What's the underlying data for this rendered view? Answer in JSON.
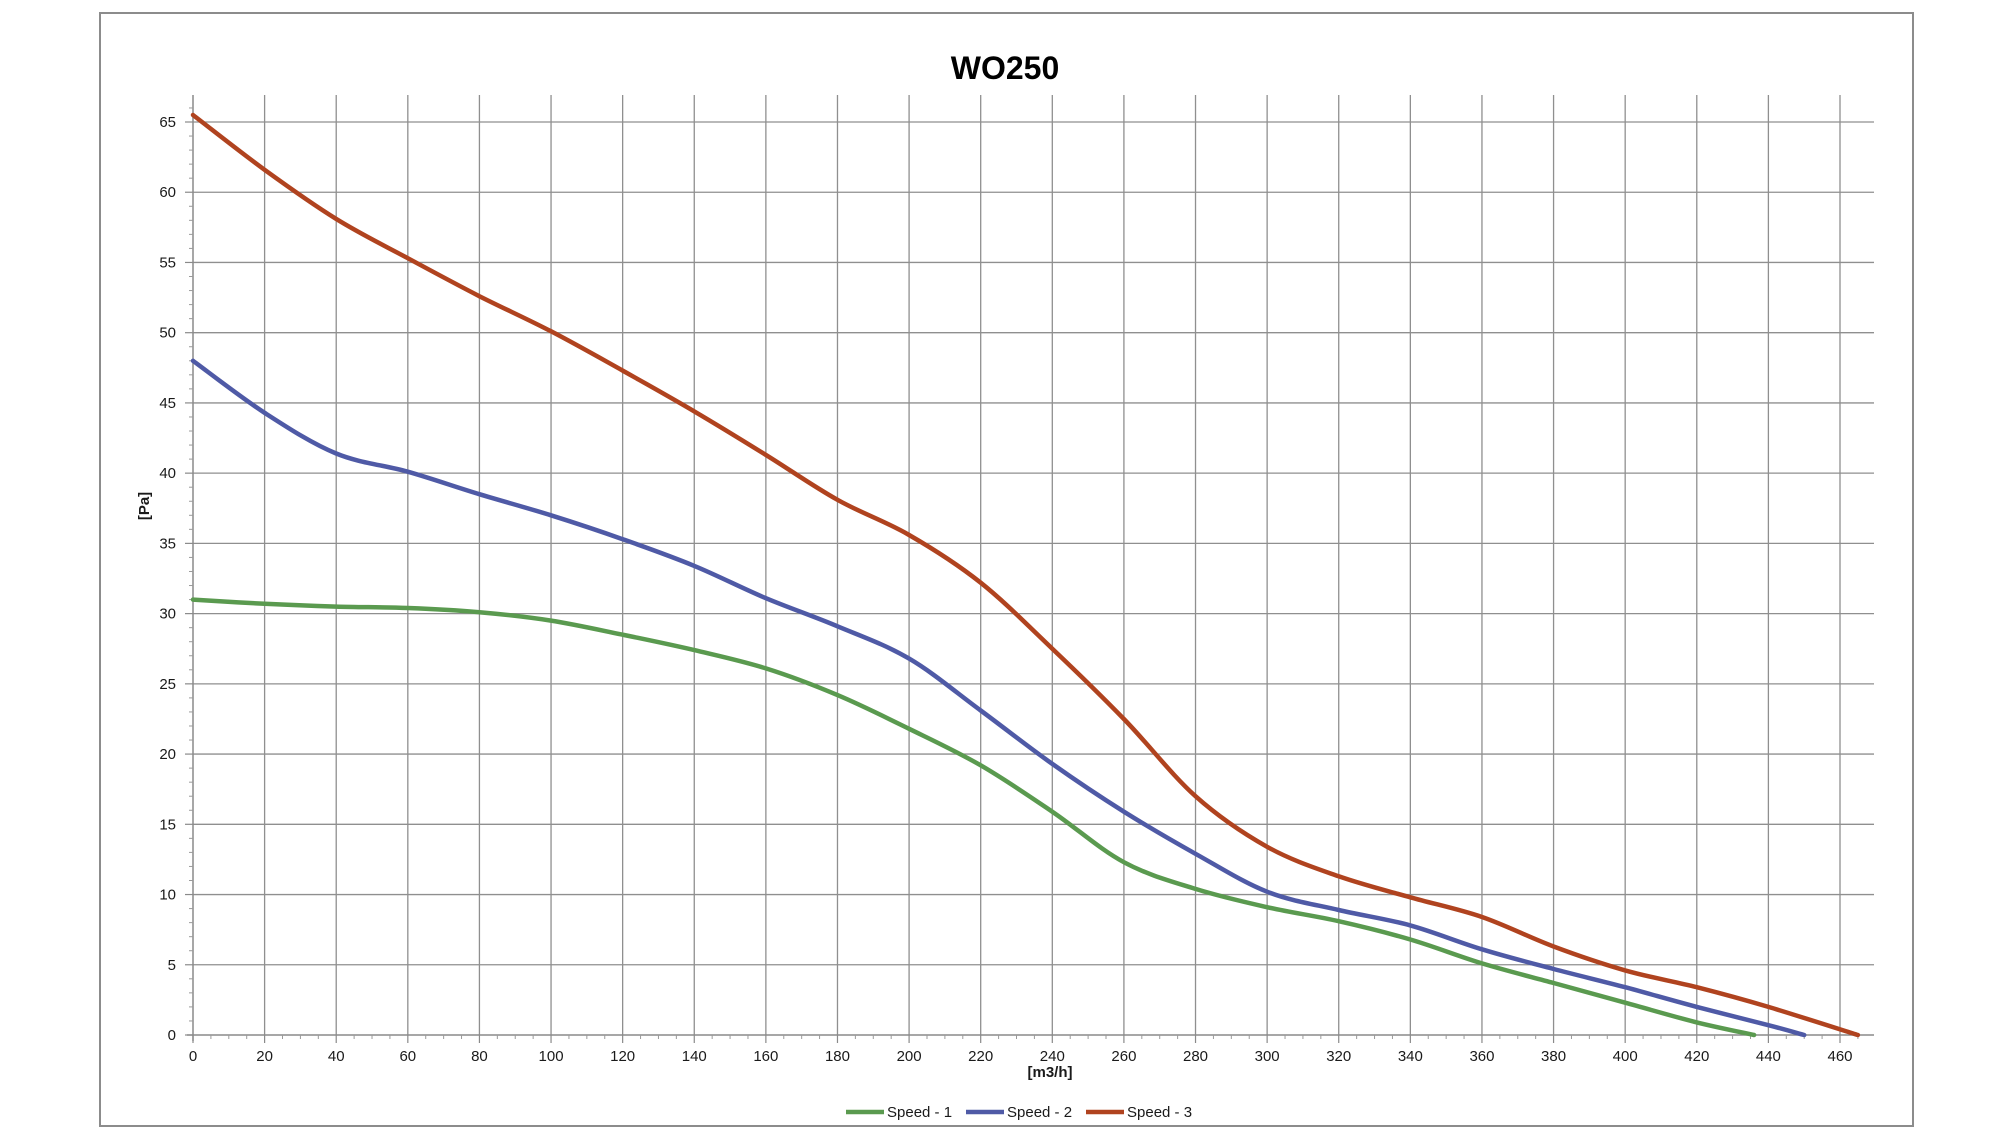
{
  "chart_data": {
    "type": "line",
    "title": "WO250",
    "xlabel": "[m3/h]",
    "ylabel": "[Pa]",
    "xlim": [
      0,
      470
    ],
    "ylim": [
      0,
      67
    ],
    "xticks": [
      0,
      20,
      40,
      60,
      80,
      100,
      120,
      140,
      160,
      180,
      200,
      220,
      240,
      260,
      280,
      300,
      320,
      340,
      360,
      380,
      400,
      420,
      440,
      460
    ],
    "yticks": [
      0,
      5,
      10,
      15,
      20,
      25,
      30,
      35,
      40,
      45,
      50,
      55,
      60,
      65
    ],
    "grid": true,
    "legend_position": "bottom",
    "series": [
      {
        "name": "Speed - 1",
        "color": "#5a9a4f",
        "x": [
          0,
          20,
          40,
          60,
          80,
          100,
          120,
          140,
          160,
          180,
          200,
          220,
          240,
          260,
          280,
          300,
          320,
          340,
          360,
          380,
          400,
          420,
          436
        ],
        "y": [
          31,
          30.7,
          30.5,
          30.4,
          30.1,
          29.5,
          28.5,
          27.4,
          26.1,
          24.2,
          21.8,
          19.2,
          15.9,
          12.3,
          10.4,
          9.1,
          8.1,
          6.8,
          5.1,
          3.7,
          2.3,
          0.9,
          0
        ]
      },
      {
        "name": "Speed - 2",
        "color": "#4f5aa6",
        "x": [
          0,
          20,
          40,
          60,
          80,
          100,
          120,
          140,
          160,
          180,
          200,
          220,
          240,
          260,
          280,
          300,
          320,
          340,
          360,
          380,
          400,
          420,
          440,
          450
        ],
        "y": [
          48,
          44.3,
          41.4,
          40.1,
          38.5,
          37,
          35.3,
          33.4,
          31.1,
          29.1,
          26.8,
          23.1,
          19.3,
          15.9,
          12.9,
          10.2,
          8.9,
          7.8,
          6.1,
          4.7,
          3.4,
          2,
          0.7,
          0
        ]
      },
      {
        "name": "Speed - 3",
        "color": "#b0431f",
        "x": [
          0,
          20,
          40,
          60,
          80,
          100,
          120,
          140,
          160,
          180,
          200,
          220,
          240,
          260,
          280,
          300,
          320,
          340,
          360,
          380,
          400,
          420,
          440,
          465
        ],
        "y": [
          65.5,
          61.6,
          58.1,
          55.3,
          52.6,
          50.1,
          47.3,
          44.4,
          41.3,
          38.1,
          35.6,
          32.2,
          27.5,
          22.5,
          17,
          13.4,
          11.3,
          9.8,
          8.4,
          6.3,
          4.6,
          3.4,
          2,
          0
        ]
      }
    ]
  }
}
